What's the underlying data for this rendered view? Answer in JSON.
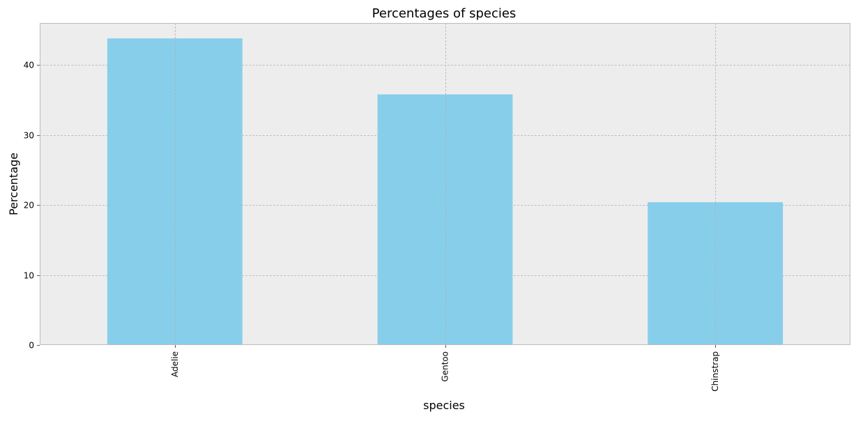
{
  "chart_data": {
    "type": "bar",
    "title": "Percentages of species",
    "xlabel": "species",
    "ylabel": "Percentage",
    "categories": [
      "Adelie",
      "Gentoo",
      "Chinstrap"
    ],
    "values": [
      43.8,
      35.8,
      20.4
    ],
    "ylim": [
      0,
      46
    ],
    "yticks": [
      0,
      10,
      20,
      30,
      40
    ],
    "ytick_labels": [
      "0",
      "10",
      "20",
      "30",
      "40"
    ],
    "grid": true,
    "legend": "none",
    "bar_color": "#87CEEB",
    "plot_background": "#EDEDED",
    "grid_color": "#B0B0B0"
  }
}
